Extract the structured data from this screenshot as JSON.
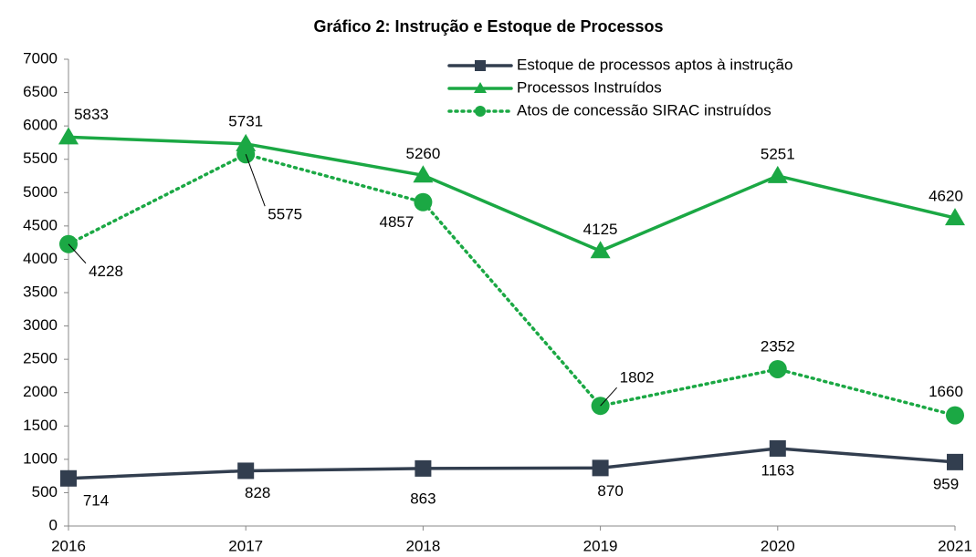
{
  "chart_data": {
    "type": "line",
    "title": "Gráfico 2: Instrução e Estoque de Processos",
    "categories": [
      "2016",
      "2017",
      "2018",
      "2019",
      "2020",
      "2021"
    ],
    "series": [
      {
        "name": "Estoque de processos aptos à instrução",
        "color": "#323e4f",
        "marker": "square",
        "dash": "solid",
        "values": [
          714,
          828,
          863,
          870,
          1163,
          959
        ]
      },
      {
        "name": "Processos Instruídos",
        "color": "#1ba844",
        "marker": "triangle",
        "dash": "solid",
        "values": [
          5833,
          5731,
          5260,
          4125,
          5251,
          4620
        ]
      },
      {
        "name": "Atos de concessão SIRAC instruídos",
        "color": "#1ba844",
        "marker": "circle",
        "dash": "dotted",
        "values": [
          4228,
          5575,
          4857,
          1802,
          2352,
          1660
        ]
      }
    ],
    "ylim": [
      0,
      7000
    ],
    "yticks": [
      0,
      500,
      1000,
      1500,
      2000,
      2500,
      3000,
      3500,
      4000,
      4500,
      5000,
      5500,
      6000,
      6500,
      7000
    ],
    "legend": "upper right",
    "grid": false
  }
}
